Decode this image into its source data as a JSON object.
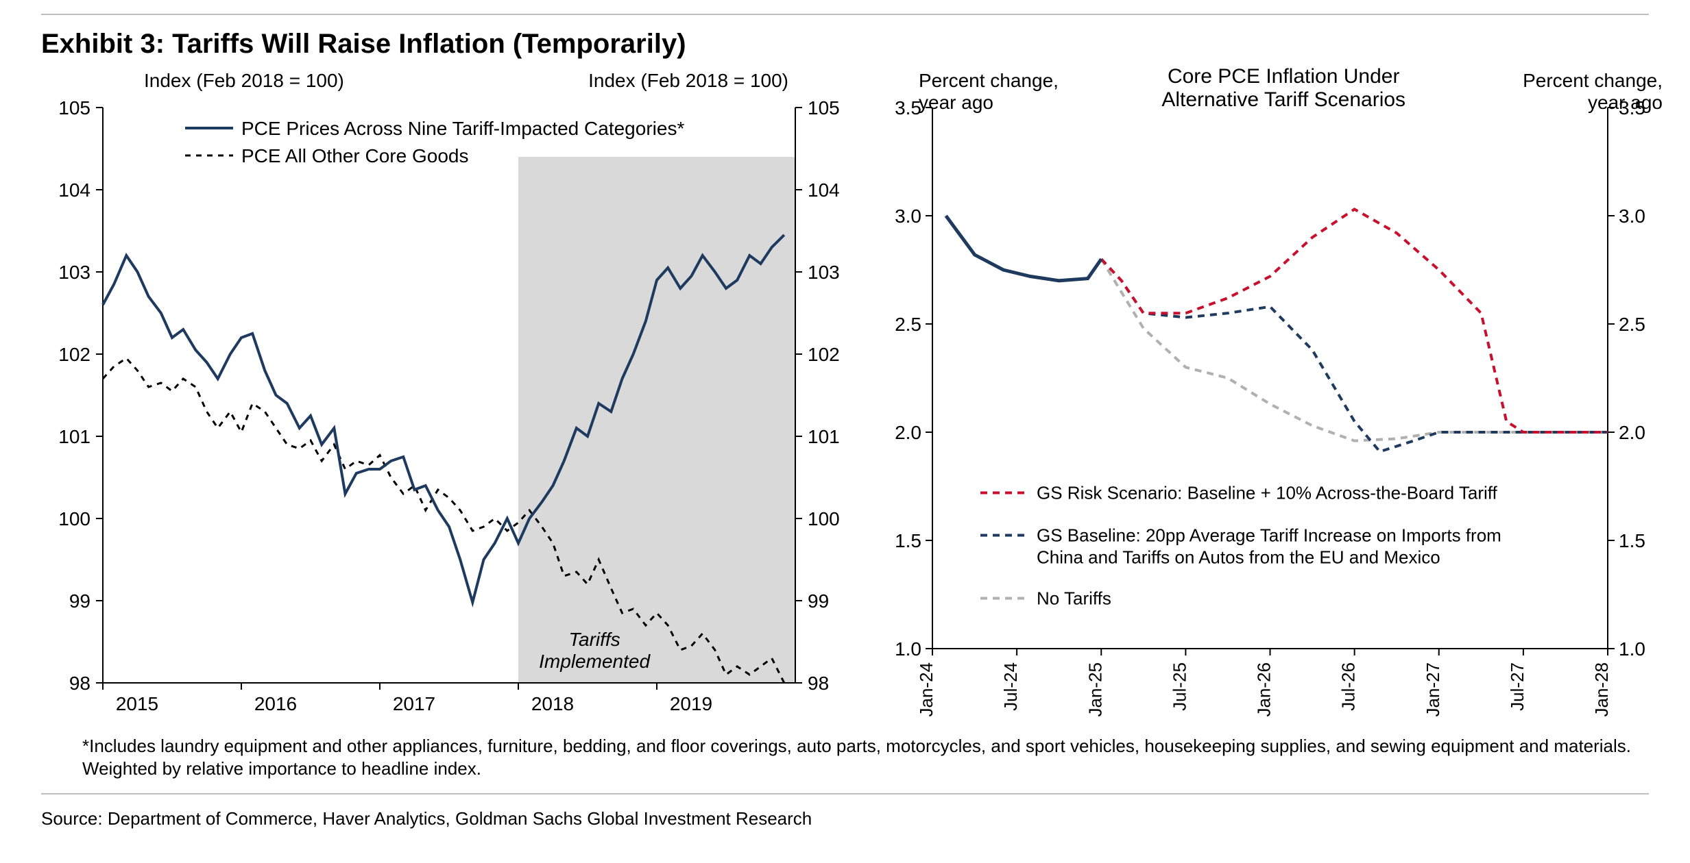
{
  "exhibit_title": "Exhibit 3: Tariffs Will Raise Inflation (Temporarily)",
  "footnote": "*Includes laundry equipment and other appliances, furniture, bedding, and floor coverings, auto parts, motorcycles, and sport vehicles, housekeeping supplies, and sewing equipment and materials. Weighted by relative importance to headline index.",
  "source": "Source: Department of Commerce, Haver Analytics, Goldman Sachs Global Investment Research",
  "colors": {
    "navy": "#1f3a5f",
    "red": "#c8102e",
    "grey_line": "#b0b0b0",
    "axis": "#000000",
    "tick": "#666666",
    "shade": "#d9d9d9",
    "rule": "#bfbfbf",
    "bg": "#ffffff"
  },
  "left_chart": {
    "type": "dual-line",
    "axis_label_left": "Index (Feb 2018 = 100)",
    "axis_label_right": "Index (Feb 2018 = 100)",
    "x_ticks": [
      2015,
      2016,
      2017,
      2018,
      2019
    ],
    "x_domain": [
      2015,
      2020
    ],
    "y_domain": [
      98,
      105
    ],
    "y_ticks": [
      98,
      99,
      100,
      101,
      102,
      103,
      104,
      105
    ],
    "shade_x": [
      2018.0,
      2020.0
    ],
    "shade_y": [
      98,
      104.4
    ],
    "callout_lines": [
      "Tariffs",
      "Implemented"
    ],
    "legend": [
      {
        "label": "PCE Prices Across Nine Tariff-Impacted Categories*",
        "color": "#1f3a5f",
        "dash": "none",
        "width": 4
      },
      {
        "label": "PCE All Other Core Goods",
        "color": "#000000",
        "dash": "8,8",
        "width": 3
      }
    ],
    "series_tariff": {
      "color": "#1f3a5f",
      "width": 4,
      "dash": "none",
      "x": [
        2015.0,
        2015.08,
        2015.17,
        2015.25,
        2015.33,
        2015.42,
        2015.5,
        2015.58,
        2015.67,
        2015.75,
        2015.83,
        2015.92,
        2016.0,
        2016.08,
        2016.17,
        2016.25,
        2016.33,
        2016.42,
        2016.5,
        2016.58,
        2016.67,
        2016.75,
        2016.83,
        2016.92,
        2017.0,
        2017.08,
        2017.17,
        2017.25,
        2017.33,
        2017.42,
        2017.5,
        2017.58,
        2017.67,
        2017.75,
        2017.83,
        2017.92,
        2018.0,
        2018.08,
        2018.17,
        2018.25,
        2018.33,
        2018.42,
        2018.5,
        2018.58,
        2018.67,
        2018.75,
        2018.83,
        2018.92,
        2019.0,
        2019.08,
        2019.17,
        2019.25,
        2019.33,
        2019.42,
        2019.5,
        2019.58,
        2019.67,
        2019.75,
        2019.83,
        2019.92
      ],
      "y": [
        102.6,
        102.85,
        103.2,
        103.0,
        102.7,
        102.5,
        102.2,
        102.3,
        102.05,
        101.9,
        101.7,
        102.0,
        102.2,
        102.25,
        101.8,
        101.5,
        101.4,
        101.1,
        101.25,
        100.9,
        101.1,
        100.3,
        100.55,
        100.6,
        100.6,
        100.7,
        100.75,
        100.35,
        100.4,
        100.1,
        99.9,
        99.5,
        98.98,
        99.5,
        99.7,
        100.0,
        99.7,
        100.0,
        100.2,
        100.4,
        100.7,
        101.1,
        101.0,
        101.4,
        101.3,
        101.7,
        102.0,
        102.4,
        102.9,
        103.05,
        102.8,
        102.95,
        103.2,
        103.0,
        102.8,
        102.9,
        103.2,
        103.1,
        103.3,
        103.45
      ]
    },
    "series_other": {
      "color": "#000000",
      "width": 3,
      "dash": "8,8",
      "x": [
        2015.0,
        2015.08,
        2015.17,
        2015.25,
        2015.33,
        2015.42,
        2015.5,
        2015.58,
        2015.67,
        2015.75,
        2015.83,
        2015.92,
        2016.0,
        2016.08,
        2016.17,
        2016.25,
        2016.33,
        2016.42,
        2016.5,
        2016.58,
        2016.67,
        2016.75,
        2016.83,
        2016.92,
        2017.0,
        2017.08,
        2017.17,
        2017.25,
        2017.33,
        2017.42,
        2017.5,
        2017.58,
        2017.67,
        2017.75,
        2017.83,
        2017.92,
        2018.0,
        2018.08,
        2018.17,
        2018.25,
        2018.33,
        2018.42,
        2018.5,
        2018.58,
        2018.67,
        2018.75,
        2018.83,
        2018.92,
        2019.0,
        2019.08,
        2019.17,
        2019.25,
        2019.33,
        2019.42,
        2019.5,
        2019.58,
        2019.67,
        2019.75,
        2019.83,
        2019.92
      ],
      "y": [
        101.7,
        101.85,
        101.95,
        101.8,
        101.6,
        101.65,
        101.55,
        101.7,
        101.6,
        101.3,
        101.1,
        101.3,
        101.05,
        101.4,
        101.3,
        101.1,
        100.9,
        100.85,
        100.95,
        100.7,
        100.9,
        100.6,
        100.7,
        100.65,
        100.77,
        100.5,
        100.3,
        100.4,
        100.1,
        100.35,
        100.25,
        100.1,
        99.85,
        99.9,
        100.0,
        99.85,
        99.95,
        100.1,
        99.9,
        99.7,
        99.3,
        99.35,
        99.2,
        99.5,
        99.15,
        98.85,
        98.9,
        98.7,
        98.85,
        98.7,
        98.4,
        98.45,
        98.6,
        98.4,
        98.1,
        98.2,
        98.1,
        98.2,
        98.3,
        98.0
      ]
    }
  },
  "right_chart": {
    "type": "multi-line",
    "title": "Core PCE Inflation Under Alternative Tariff Scenarios",
    "axis_label_left": "Percent change, year ago",
    "axis_label_right": "Percent change, year ago",
    "x_ticks_labels": [
      "Jan-24",
      "Jul-24",
      "Jan-25",
      "Jul-25",
      "Jan-26",
      "Jul-26",
      "Jan-27",
      "Jul-27",
      "Jan-28"
    ],
    "x_ticks_vals": [
      2024.0,
      2024.5,
      2025.0,
      2025.5,
      2026.0,
      2026.5,
      2027.0,
      2027.5,
      2028.0
    ],
    "x_domain": [
      2024.0,
      2028.0
    ],
    "y_domain": [
      1.0,
      3.5
    ],
    "y_ticks": [
      1.0,
      1.5,
      2.0,
      2.5,
      3.0,
      3.5
    ],
    "legend": [
      {
        "label": "GS Risk Scenario: Baseline + 10% Across-the-Board Tariff",
        "color": "#c8102e",
        "dash": "10,8",
        "width": 4
      },
      {
        "label_lines": [
          "GS Baseline: 20pp Average Tariff Increase on Imports from",
          "China and Tariffs on Autos from the EU and Mexico"
        ],
        "color": "#1f3a5f",
        "dash": "10,8",
        "width": 4
      },
      {
        "label": "No Tariffs",
        "color": "#b0b0b0",
        "dash": "10,8",
        "width": 4
      }
    ],
    "series_hist": {
      "color": "#1f3a5f",
      "width": 5,
      "dash": "none",
      "x": [
        2024.08,
        2024.25,
        2024.42,
        2024.58,
        2024.75,
        2024.92,
        2025.0
      ],
      "y": [
        3.0,
        2.82,
        2.75,
        2.72,
        2.7,
        2.71,
        2.8
      ]
    },
    "series_no_tariff": {
      "color": "#b0b0b0",
      "width": 4,
      "dash": "10,8",
      "x": [
        2025.0,
        2025.25,
        2025.5,
        2025.75,
        2026.0,
        2026.25,
        2026.5,
        2026.75,
        2027.0,
        2027.5,
        2028.0
      ],
      "y": [
        2.8,
        2.48,
        2.3,
        2.25,
        2.13,
        2.03,
        1.96,
        1.97,
        2.0,
        2.0,
        2.0
      ]
    },
    "series_baseline": {
      "color": "#1f3a5f",
      "width": 4,
      "dash": "10,8",
      "x": [
        2025.0,
        2025.12,
        2025.25,
        2025.5,
        2025.75,
        2026.0,
        2026.25,
        2026.5,
        2026.65,
        2026.85,
        2027.0,
        2027.5,
        2028.0
      ],
      "y": [
        2.8,
        2.7,
        2.55,
        2.53,
        2.55,
        2.58,
        2.38,
        2.05,
        1.91,
        1.96,
        2.0,
        2.0,
        2.0
      ]
    },
    "series_risk": {
      "color": "#c8102e",
      "width": 4,
      "dash": "10,8",
      "x": [
        2025.0,
        2025.12,
        2025.25,
        2025.5,
        2025.75,
        2026.0,
        2026.25,
        2026.5,
        2026.75,
        2027.0,
        2027.25,
        2027.4,
        2027.5,
        2028.0
      ],
      "y": [
        2.8,
        2.7,
        2.55,
        2.55,
        2.62,
        2.72,
        2.9,
        3.03,
        2.92,
        2.75,
        2.55,
        2.05,
        2.0,
        2.0
      ]
    }
  }
}
